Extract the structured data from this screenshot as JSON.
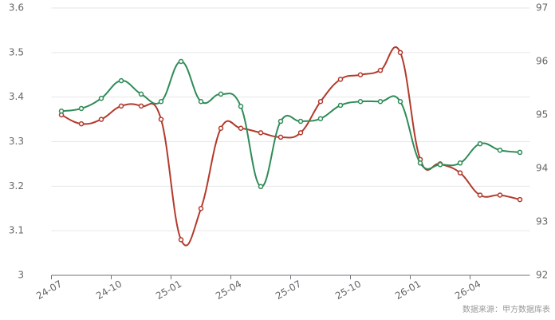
{
  "chart_data": {
    "type": "line",
    "categories": [
      "24-07",
      null,
      null,
      "24-10",
      null,
      null,
      "25-01",
      null,
      null,
      "25-04",
      null,
      null,
      "25-07",
      null,
      null,
      "25-10",
      null,
      null,
      "26-01",
      null,
      null,
      "26-04",
      null,
      null
    ],
    "series": [
      {
        "color": "#b23a2c",
        "values": [
          3.36,
          3.34,
          3.35,
          3.38,
          3.38,
          3.35,
          3.08,
          3.15,
          3.33,
          3.33,
          3.32,
          3.31,
          3.32,
          3.39,
          3.44,
          3.45,
          3.46,
          3.5,
          3.26,
          3.25,
          3.23,
          3.18,
          3.18,
          3.17
        ]
      },
      {
        "color": "#2e8b57",
        "axis": "y2",
        "values": [
          95.07,
          95.12,
          95.31,
          95.64,
          95.39,
          95.25,
          96.0,
          95.25,
          95.39,
          95.16,
          93.66,
          94.88,
          94.88,
          94.93,
          95.18,
          95.25,
          95.25,
          95.25,
          94.1,
          94.07,
          94.1,
          94.46,
          94.34,
          94.3
        ]
      }
    ],
    "ylim": [
      3,
      3.6
    ],
    "yticks": [
      3,
      3.1,
      3.2,
      3.3,
      3.4,
      3.5,
      3.6
    ],
    "y2lim": [
      92,
      97
    ],
    "y2ticks": [
      92,
      93,
      94,
      95,
      96,
      97
    ],
    "grid": true,
    "source": "数据来源：甲方数据库表"
  }
}
